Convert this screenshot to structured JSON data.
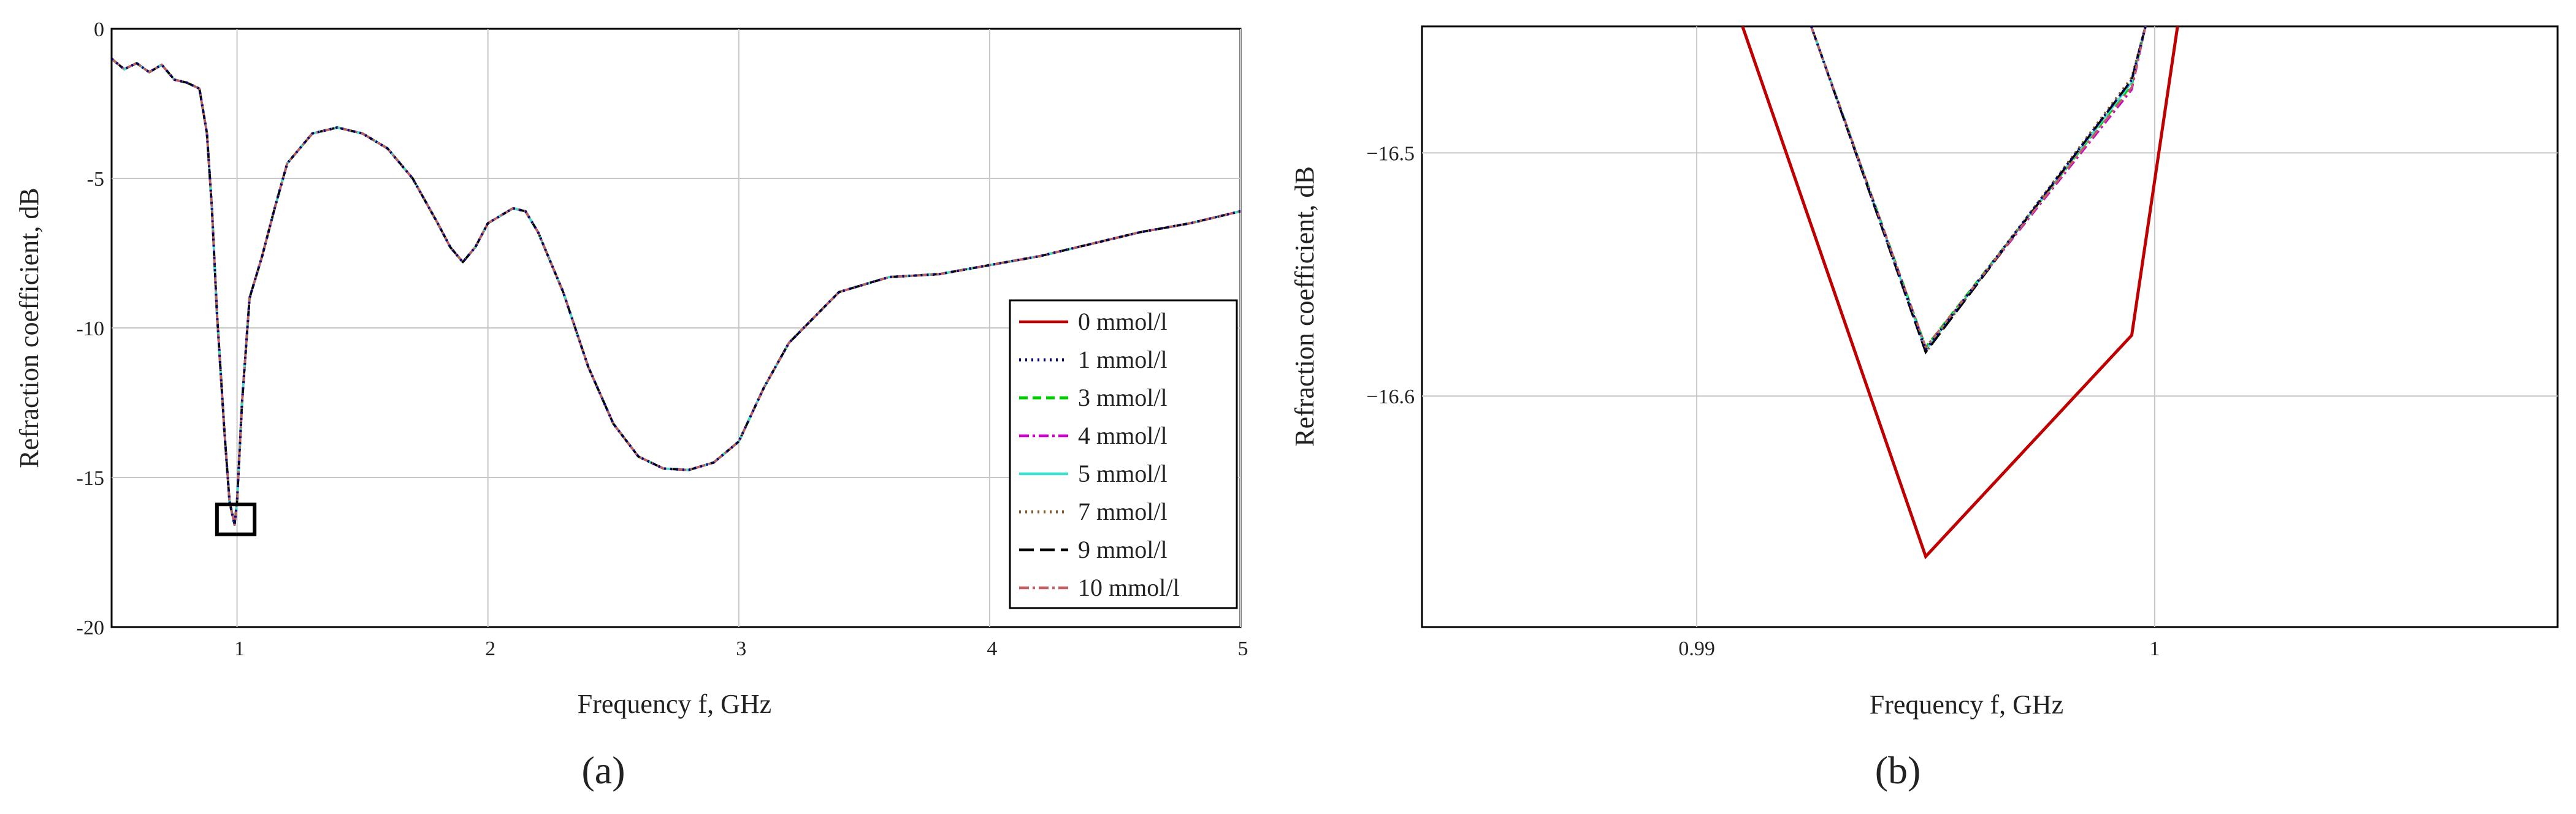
{
  "chart_data": [
    {
      "panel": "a",
      "type": "line",
      "panel_label": "(a)",
      "xlabel": "Frequency f, GHz",
      "ylabel": "Refraction coefficient, dB",
      "xlim": [
        0.5,
        5
      ],
      "ylim": [
        -20,
        0
      ],
      "xticks": [
        1,
        2,
        3,
        4,
        5
      ],
      "yticks": [
        0,
        -5,
        -10,
        -15,
        -20
      ],
      "grid": true,
      "legend_position": "right",
      "highlight_box": {
        "x": [
          0.92,
          1.07
        ],
        "y": [
          -15.9,
          -16.9
        ]
      },
      "base_curve": {
        "x": [
          0.5,
          0.55,
          0.6,
          0.65,
          0.7,
          0.75,
          0.8,
          0.85,
          0.88,
          0.9,
          0.92,
          0.95,
          0.97,
          0.99,
          1.0,
          1.02,
          1.05,
          1.1,
          1.15,
          1.2,
          1.3,
          1.4,
          1.5,
          1.6,
          1.7,
          1.8,
          1.85,
          1.9,
          1.95,
          2.0,
          2.1,
          2.15,
          2.2,
          2.3,
          2.4,
          2.5,
          2.6,
          2.7,
          2.8,
          2.9,
          3.0,
          3.1,
          3.2,
          3.4,
          3.6,
          3.8,
          4.0,
          4.2,
          4.4,
          4.6,
          4.8,
          5.0
        ],
        "y": [
          -1.0,
          -1.35,
          -1.15,
          -1.45,
          -1.2,
          -1.7,
          -1.8,
          -2.0,
          -3.5,
          -6.0,
          -9.5,
          -13.5,
          -15.8,
          -16.58,
          -15.8,
          -12.5,
          -9.0,
          -7.6,
          -6.0,
          -4.5,
          -3.5,
          -3.3,
          -3.5,
          -4.0,
          -5.0,
          -6.5,
          -7.3,
          -7.8,
          -7.3,
          -6.5,
          -6.0,
          -6.1,
          -6.8,
          -8.8,
          -11.3,
          -13.2,
          -14.3,
          -14.7,
          -14.75,
          -14.5,
          -13.8,
          -12.0,
          -10.5,
          -8.8,
          -8.3,
          -8.2,
          -7.9,
          -7.6,
          -7.2,
          -6.8,
          -6.5,
          -6.1
        ]
      },
      "series": [
        {
          "name": "0 mmol/l",
          "color": "#c00000",
          "dash": "solid"
        },
        {
          "name": "1 mmol/l",
          "color": "#000080",
          "dash": "dot"
        },
        {
          "name": "3 mmol/l",
          "color": "#00cc00",
          "dash": "dash"
        },
        {
          "name": "4 mmol/l",
          "color": "#cc00cc",
          "dash": "dashdot"
        },
        {
          "name": "5 mmol/l",
          "color": "#40e0d0",
          "dash": "solid"
        },
        {
          "name": "7 mmol/l",
          "color": "#8b5a2b",
          "dash": "dot"
        },
        {
          "name": "9 mmol/l",
          "color": "#000000",
          "dash": "longdash"
        },
        {
          "name": "10 mmol/l",
          "color": "#c06060",
          "dash": "dashdot"
        }
      ]
    },
    {
      "panel": "b",
      "type": "line",
      "panel_label": "(b)",
      "xlabel": "Frequency f, GHz",
      "ylabel": "Refraction coefficient, dB",
      "xlim": [
        0.984,
        1.0088
      ],
      "ylim": [
        -16.695,
        -16.448
      ],
      "xticks": [
        0.99,
        1.0
      ],
      "xtick_labels": [
        "0.99",
        "1"
      ],
      "yticks": [
        -16.5,
        -16.6
      ],
      "ytick_labels": [
        "−16.5",
        "−16.6"
      ],
      "grid": true,
      "series": [
        {
          "name": "0 mmol/l",
          "color": "#c00000",
          "dash": "solid",
          "x": [
            0.991,
            0.995,
            0.9995,
            1.0005
          ],
          "y": [
            -16.448,
            -16.666,
            -16.575,
            -16.448
          ]
        },
        {
          "name": "1 mmol/l",
          "color": "#000080",
          "dash": "dot",
          "x": [
            0.9925,
            0.995,
            0.9995,
            0.9998
          ],
          "y": [
            -16.448,
            -16.581,
            -16.47,
            -16.448
          ]
        },
        {
          "name": "3 mmol/l",
          "color": "#00cc00",
          "dash": "dash",
          "x": [
            0.9925,
            0.995,
            0.9995,
            0.9998
          ],
          "y": [
            -16.448,
            -16.58,
            -16.472,
            -16.448
          ]
        },
        {
          "name": "4 mmol/l",
          "color": "#cc00cc",
          "dash": "dashdot",
          "x": [
            0.9925,
            0.995,
            0.9995,
            0.9998
          ],
          "y": [
            -16.448,
            -16.58,
            -16.474,
            -16.448
          ]
        },
        {
          "name": "5 mmol/l",
          "color": "#40e0d0",
          "dash": "solid",
          "x": [
            0.9925,
            0.995,
            0.9995,
            0.9998
          ],
          "y": [
            -16.448,
            -16.581,
            -16.471,
            -16.448
          ]
        },
        {
          "name": "7 mmol/l",
          "color": "#8b5a2b",
          "dash": "dot",
          "x": [
            0.9925,
            0.995,
            0.9995,
            0.9998
          ],
          "y": [
            -16.448,
            -16.582,
            -16.469,
            -16.448
          ]
        },
        {
          "name": "9 mmol/l",
          "color": "#000000",
          "dash": "longdash",
          "x": [
            0.9925,
            0.995,
            0.9995,
            0.9998
          ],
          "y": [
            -16.448,
            -16.582,
            -16.47,
            -16.448
          ]
        },
        {
          "name": "10 mmol/l",
          "color": "#c06060",
          "dash": "dashdot",
          "x": [
            0.9925,
            0.995,
            0.9995,
            0.9998
          ],
          "y": [
            -16.448,
            -16.58,
            -16.473,
            -16.448
          ]
        }
      ]
    }
  ]
}
